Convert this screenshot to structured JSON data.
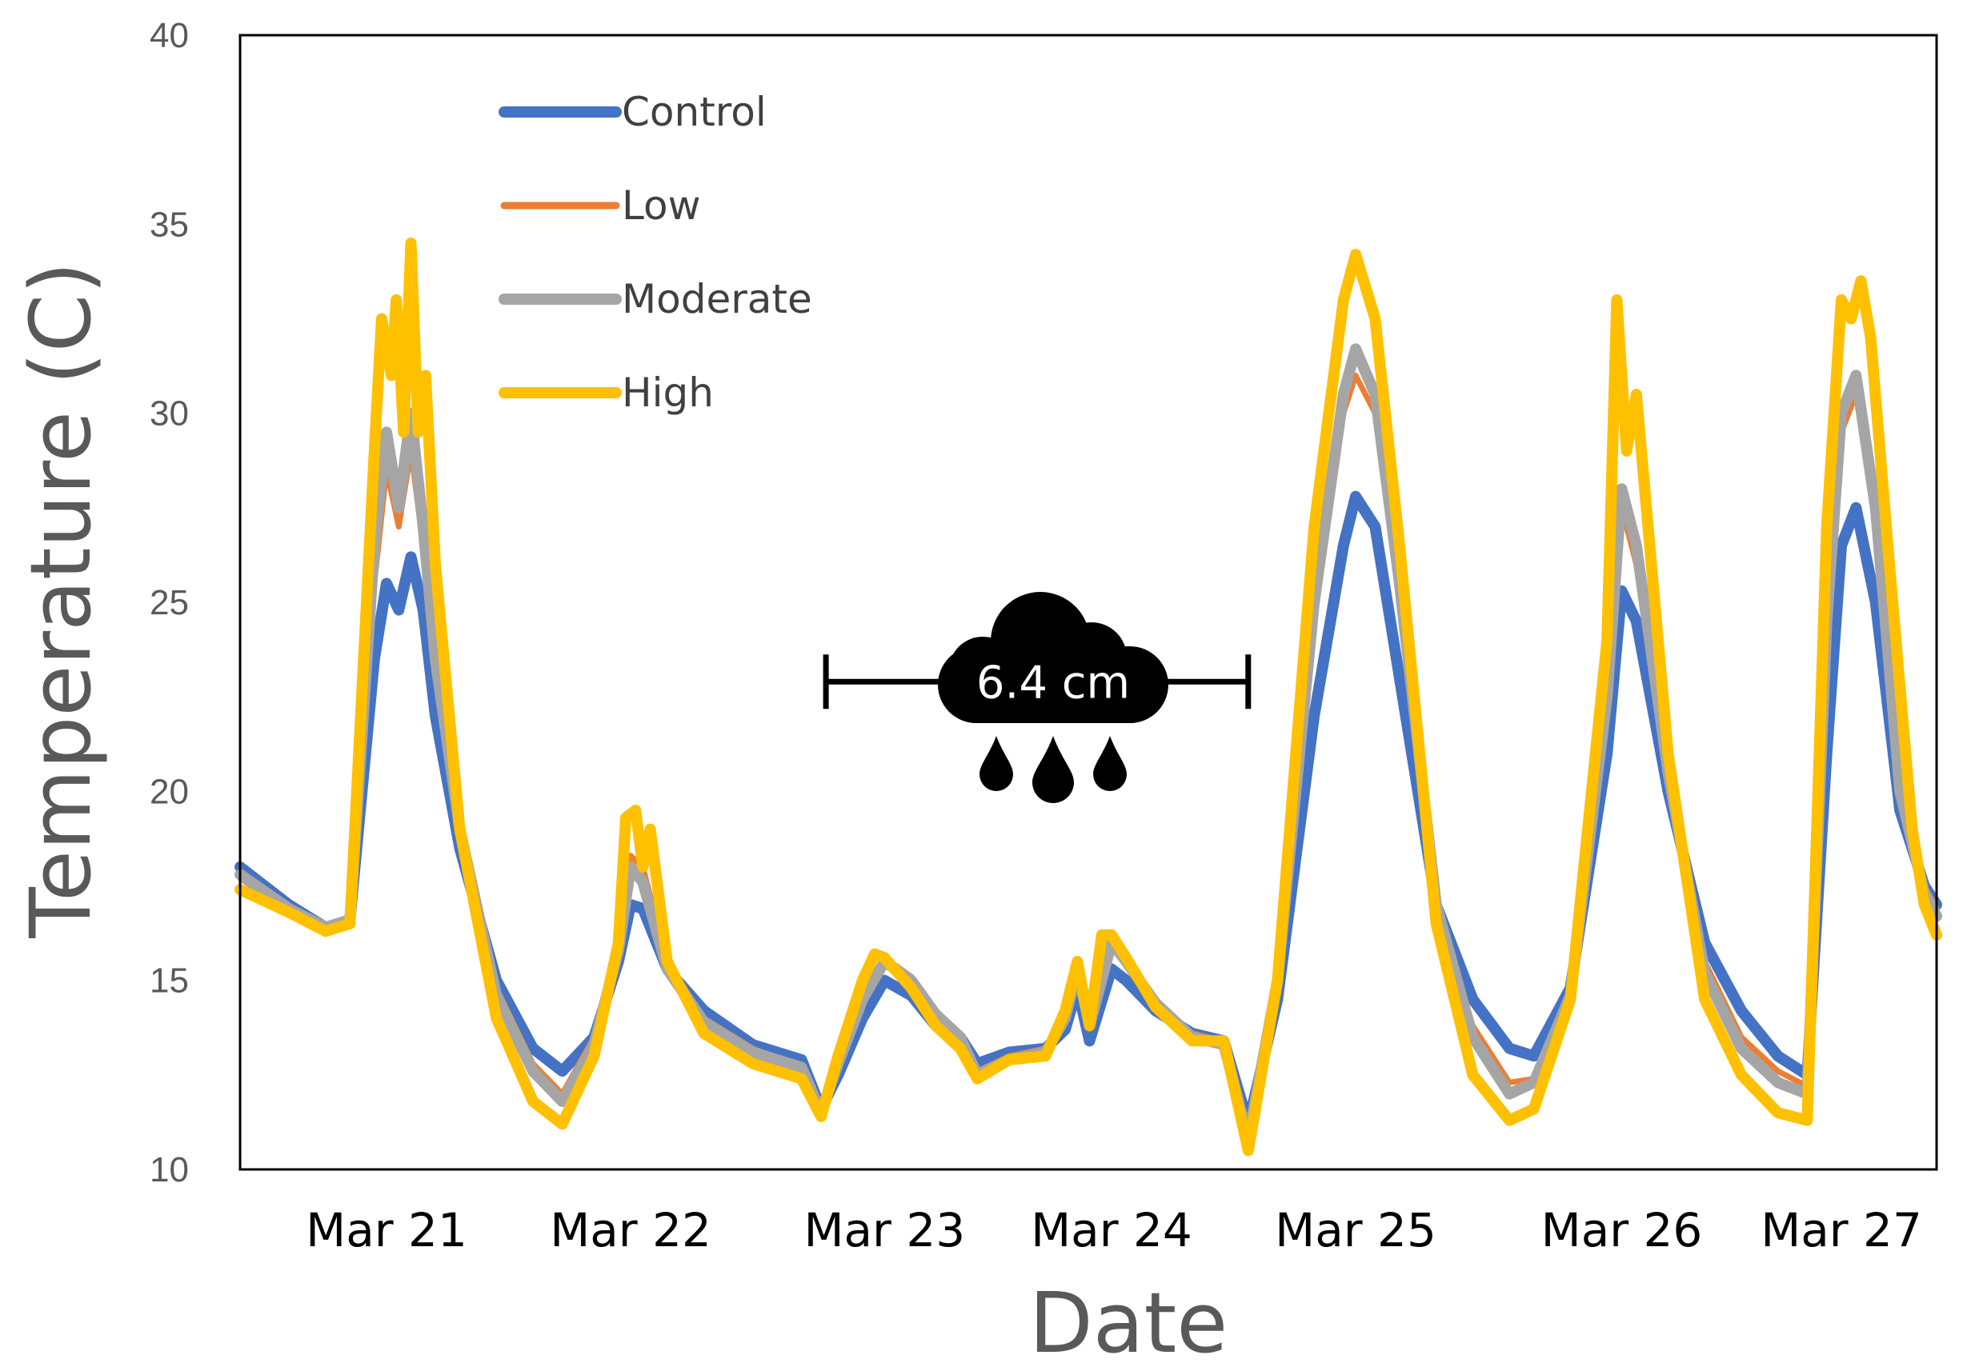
{
  "chart_data": {
    "type": "line",
    "title": "",
    "xlabel": "Date",
    "ylabel": "Temperature (C)",
    "ylim": [
      10,
      40
    ],
    "xlim": [
      20.4,
      27.35
    ],
    "yticks": [
      10,
      15,
      20,
      25,
      30,
      35,
      40
    ],
    "xticks": [
      {
        "label": "Mar 21",
        "x": 21.0
      },
      {
        "label": "Mar 22",
        "x": 22.0
      },
      {
        "label": "Mar 23",
        "x": 23.04
      },
      {
        "label": "Mar 24",
        "x": 23.97
      },
      {
        "label": "Mar 25",
        "x": 24.97
      },
      {
        "label": "Mar 26",
        "x": 26.06
      },
      {
        "label": "Mar 27",
        "x": 26.96
      }
    ],
    "legend": {
      "position": "top-left"
    },
    "annotation": {
      "text": "6.4 cm",
      "description": "rain event",
      "x_start": 22.8,
      "x_end": 24.53,
      "y": 22.9,
      "icon": "rain-cloud-icon"
    },
    "series": [
      {
        "name": "Control",
        "color": "#4472C4",
        "width": 14,
        "points": [
          [
            20.4,
            18.0
          ],
          [
            20.6,
            17.0
          ],
          [
            20.75,
            16.4
          ],
          [
            20.85,
            16.6
          ],
          [
            20.95,
            23.5
          ],
          [
            21.0,
            25.5
          ],
          [
            21.05,
            24.8
          ],
          [
            21.1,
            26.2
          ],
          [
            21.15,
            24.8
          ],
          [
            21.2,
            22.0
          ],
          [
            21.3,
            18.5
          ],
          [
            21.45,
            15.0
          ],
          [
            21.6,
            13.2
          ],
          [
            21.72,
            12.6
          ],
          [
            21.85,
            13.5
          ],
          [
            21.95,
            15.5
          ],
          [
            22.0,
            17.0
          ],
          [
            22.05,
            16.9
          ],
          [
            22.15,
            15.3
          ],
          [
            22.3,
            14.2
          ],
          [
            22.5,
            13.3
          ],
          [
            22.7,
            12.9
          ],
          [
            22.78,
            11.6
          ],
          [
            22.85,
            12.5
          ],
          [
            22.95,
            14.0
          ],
          [
            23.04,
            15.0
          ],
          [
            23.15,
            14.6
          ],
          [
            23.25,
            13.8
          ],
          [
            23.35,
            13.5
          ],
          [
            23.42,
            12.8
          ],
          [
            23.55,
            13.1
          ],
          [
            23.7,
            13.2
          ],
          [
            23.78,
            13.7
          ],
          [
            23.83,
            14.8
          ],
          [
            23.88,
            13.4
          ],
          [
            23.97,
            15.3
          ],
          [
            24.03,
            15.0
          ],
          [
            24.15,
            14.2
          ],
          [
            24.3,
            13.6
          ],
          [
            24.43,
            13.4
          ],
          [
            24.53,
            11.2
          ],
          [
            24.65,
            14.5
          ],
          [
            24.8,
            22.0
          ],
          [
            24.92,
            26.5
          ],
          [
            24.97,
            27.8
          ],
          [
            25.05,
            27.0
          ],
          [
            25.15,
            23.0
          ],
          [
            25.3,
            17.0
          ],
          [
            25.45,
            14.5
          ],
          [
            25.6,
            13.2
          ],
          [
            25.7,
            13.0
          ],
          [
            25.85,
            14.8
          ],
          [
            26.0,
            21.0
          ],
          [
            26.06,
            25.3
          ],
          [
            26.12,
            24.5
          ],
          [
            26.25,
            20.0
          ],
          [
            26.4,
            16.0
          ],
          [
            26.55,
            14.2
          ],
          [
            26.7,
            13.0
          ],
          [
            26.82,
            12.5
          ],
          [
            26.9,
            21.0
          ],
          [
            26.96,
            26.5
          ],
          [
            27.02,
            27.5
          ],
          [
            27.1,
            25.0
          ],
          [
            27.2,
            19.5
          ],
          [
            27.3,
            17.5
          ],
          [
            27.35,
            17.0
          ]
        ]
      },
      {
        "name": "Low",
        "color": "#ED7D31",
        "width": 7,
        "points": [
          [
            20.4,
            17.7
          ],
          [
            20.6,
            16.8
          ],
          [
            20.75,
            16.4
          ],
          [
            20.85,
            16.6
          ],
          [
            20.95,
            25.5
          ],
          [
            21.0,
            28.5
          ],
          [
            21.05,
            27.0
          ],
          [
            21.1,
            29.0
          ],
          [
            21.15,
            26.5
          ],
          [
            21.2,
            23.0
          ],
          [
            21.3,
            18.8
          ],
          [
            21.45,
            14.8
          ],
          [
            21.6,
            12.8
          ],
          [
            21.72,
            12.0
          ],
          [
            21.85,
            13.5
          ],
          [
            21.95,
            16.0
          ],
          [
            22.0,
            18.3
          ],
          [
            22.05,
            18.0
          ],
          [
            22.15,
            15.5
          ],
          [
            22.3,
            14.0
          ],
          [
            22.5,
            13.2
          ],
          [
            22.7,
            12.7
          ],
          [
            22.78,
            11.5
          ],
          [
            22.85,
            12.8
          ],
          [
            22.95,
            14.6
          ],
          [
            23.04,
            15.6
          ],
          [
            23.15,
            15.1
          ],
          [
            23.25,
            14.2
          ],
          [
            23.35,
            13.6
          ],
          [
            23.42,
            12.6
          ],
          [
            23.55,
            13.0
          ],
          [
            23.7,
            13.2
          ],
          [
            23.78,
            14.0
          ],
          [
            23.83,
            15.5
          ],
          [
            23.88,
            14.0
          ],
          [
            23.97,
            16.0
          ],
          [
            24.03,
            15.5
          ],
          [
            24.15,
            14.5
          ],
          [
            24.3,
            13.6
          ],
          [
            24.43,
            13.4
          ],
          [
            24.53,
            10.9
          ],
          [
            24.65,
            15.0
          ],
          [
            24.8,
            24.5
          ],
          [
            24.92,
            30.0
          ],
          [
            24.97,
            31.0
          ],
          [
            25.05,
            30.0
          ],
          [
            25.15,
            25.0
          ],
          [
            25.3,
            17.0
          ],
          [
            25.45,
            13.8
          ],
          [
            25.6,
            12.3
          ],
          [
            25.7,
            12.4
          ],
          [
            25.85,
            14.6
          ],
          [
            26.0,
            22.0
          ],
          [
            26.06,
            27.5
          ],
          [
            26.12,
            26.0
          ],
          [
            26.25,
            20.5
          ],
          [
            26.4,
            15.5
          ],
          [
            26.55,
            13.5
          ],
          [
            26.7,
            12.6
          ],
          [
            26.82,
            12.2
          ],
          [
            26.9,
            24.0
          ],
          [
            26.96,
            29.5
          ],
          [
            27.02,
            30.5
          ],
          [
            27.1,
            27.0
          ],
          [
            27.2,
            20.0
          ],
          [
            27.3,
            17.5
          ],
          [
            27.35,
            16.9
          ]
        ]
      },
      {
        "name": "Moderate",
        "color": "#A5A5A5",
        "width": 14,
        "points": [
          [
            20.4,
            17.8
          ],
          [
            20.6,
            16.9
          ],
          [
            20.75,
            16.4
          ],
          [
            20.85,
            16.6
          ],
          [
            20.95,
            26.5
          ],
          [
            21.0,
            29.5
          ],
          [
            21.05,
            27.5
          ],
          [
            21.1,
            30.0
          ],
          [
            21.15,
            27.0
          ],
          [
            21.2,
            23.5
          ],
          [
            21.3,
            19.0
          ],
          [
            21.45,
            14.6
          ],
          [
            21.6,
            12.6
          ],
          [
            21.72,
            11.8
          ],
          [
            21.85,
            13.3
          ],
          [
            21.95,
            15.8
          ],
          [
            22.0,
            18.0
          ],
          [
            22.05,
            17.6
          ],
          [
            22.15,
            15.3
          ],
          [
            22.3,
            13.9
          ],
          [
            22.5,
            13.1
          ],
          [
            22.7,
            12.7
          ],
          [
            22.78,
            11.5
          ],
          [
            22.85,
            12.8
          ],
          [
            22.95,
            14.5
          ],
          [
            23.04,
            15.5
          ],
          [
            23.15,
            15.0
          ],
          [
            23.25,
            14.1
          ],
          [
            23.35,
            13.5
          ],
          [
            23.42,
            12.5
          ],
          [
            23.55,
            12.9
          ],
          [
            23.7,
            13.1
          ],
          [
            23.78,
            14.0
          ],
          [
            23.83,
            15.3
          ],
          [
            23.88,
            13.8
          ],
          [
            23.97,
            16.0
          ],
          [
            24.03,
            15.5
          ],
          [
            24.15,
            14.4
          ],
          [
            24.3,
            13.5
          ],
          [
            24.43,
            13.3
          ],
          [
            24.53,
            10.8
          ],
          [
            24.65,
            15.0
          ],
          [
            24.8,
            25.0
          ],
          [
            24.92,
            30.5
          ],
          [
            24.97,
            31.7
          ],
          [
            25.05,
            30.5
          ],
          [
            25.15,
            25.5
          ],
          [
            25.3,
            17.0
          ],
          [
            25.45,
            13.5
          ],
          [
            25.6,
            12.0
          ],
          [
            25.7,
            12.3
          ],
          [
            25.85,
            14.6
          ],
          [
            26.0,
            22.5
          ],
          [
            26.06,
            28.0
          ],
          [
            26.12,
            26.5
          ],
          [
            26.25,
            20.5
          ],
          [
            26.4,
            15.2
          ],
          [
            26.55,
            13.2
          ],
          [
            26.7,
            12.3
          ],
          [
            26.82,
            12.0
          ],
          [
            26.9,
            24.5
          ],
          [
            26.96,
            30.0
          ],
          [
            27.02,
            31.0
          ],
          [
            27.1,
            27.5
          ],
          [
            27.2,
            20.0
          ],
          [
            27.3,
            17.3
          ],
          [
            27.35,
            16.7
          ]
        ]
      },
      {
        "name": "High",
        "color": "#FFC000",
        "width": 14,
        "points": [
          [
            20.4,
            17.4
          ],
          [
            20.6,
            16.8
          ],
          [
            20.75,
            16.3
          ],
          [
            20.85,
            16.5
          ],
          [
            20.95,
            29.0
          ],
          [
            20.98,
            32.5
          ],
          [
            21.02,
            31.0
          ],
          [
            21.04,
            33.0
          ],
          [
            21.07,
            29.5
          ],
          [
            21.1,
            34.5
          ],
          [
            21.13,
            29.5
          ],
          [
            21.16,
            31.0
          ],
          [
            21.2,
            26.0
          ],
          [
            21.3,
            19.0
          ],
          [
            21.45,
            14.0
          ],
          [
            21.6,
            11.8
          ],
          [
            21.72,
            11.2
          ],
          [
            21.85,
            13.0
          ],
          [
            21.95,
            16.0
          ],
          [
            21.98,
            19.3
          ],
          [
            22.02,
            19.5
          ],
          [
            22.05,
            18.0
          ],
          [
            22.08,
            19.0
          ],
          [
            22.15,
            15.5
          ],
          [
            22.3,
            13.6
          ],
          [
            22.5,
            12.8
          ],
          [
            22.7,
            12.4
          ],
          [
            22.78,
            11.4
          ],
          [
            22.85,
            13.0
          ],
          [
            22.95,
            15.0
          ],
          [
            23.0,
            15.7
          ],
          [
            23.04,
            15.6
          ],
          [
            23.15,
            14.8
          ],
          [
            23.25,
            13.8
          ],
          [
            23.35,
            13.2
          ],
          [
            23.42,
            12.4
          ],
          [
            23.55,
            12.9
          ],
          [
            23.7,
            13.0
          ],
          [
            23.78,
            14.2
          ],
          [
            23.83,
            15.5
          ],
          [
            23.88,
            13.8
          ],
          [
            23.93,
            16.2
          ],
          [
            23.97,
            16.2
          ],
          [
            24.03,
            15.6
          ],
          [
            24.15,
            14.3
          ],
          [
            24.3,
            13.4
          ],
          [
            24.43,
            13.4
          ],
          [
            24.53,
            10.5
          ],
          [
            24.65,
            15.0
          ],
          [
            24.8,
            27.0
          ],
          [
            24.92,
            33.0
          ],
          [
            24.97,
            34.2
          ],
          [
            25.05,
            32.5
          ],
          [
            25.15,
            26.5
          ],
          [
            25.3,
            16.5
          ],
          [
            25.45,
            12.5
          ],
          [
            25.6,
            11.3
          ],
          [
            25.7,
            11.6
          ],
          [
            25.85,
            14.5
          ],
          [
            26.0,
            24.0
          ],
          [
            26.04,
            33.0
          ],
          [
            26.08,
            29.0
          ],
          [
            26.12,
            30.5
          ],
          [
            26.25,
            21.0
          ],
          [
            26.4,
            14.5
          ],
          [
            26.55,
            12.5
          ],
          [
            26.7,
            11.5
          ],
          [
            26.82,
            11.3
          ],
          [
            26.9,
            27.0
          ],
          [
            26.96,
            33.0
          ],
          [
            27.0,
            32.5
          ],
          [
            27.04,
            33.5
          ],
          [
            27.08,
            32.0
          ],
          [
            27.15,
            26.5
          ],
          [
            27.25,
            19.0
          ],
          [
            27.3,
            17.0
          ],
          [
            27.35,
            16.2
          ]
        ]
      }
    ]
  }
}
